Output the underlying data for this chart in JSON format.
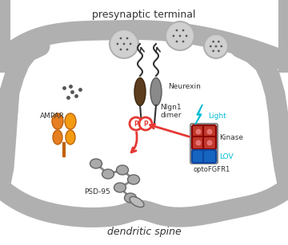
{
  "title_top": "presynaptic terminal",
  "title_bottom": "dendritic spine",
  "bg_color": "#ffffff",
  "membrane_color": "#b0b0b0",
  "text_color": "#000000",
  "cyan_color": "#00bcd4",
  "red_color": "#e53935",
  "label_neurexin": "Neurexin",
  "label_nlgn1": "Nlgn1\ndimer",
  "label_ampar": "AMPAR",
  "label_psd95": "PSD-95",
  "label_kinase": "Kinase",
  "label_lov": "LOV",
  "label_optofgfr1": "optoFGFR1",
  "label_light": "Light"
}
